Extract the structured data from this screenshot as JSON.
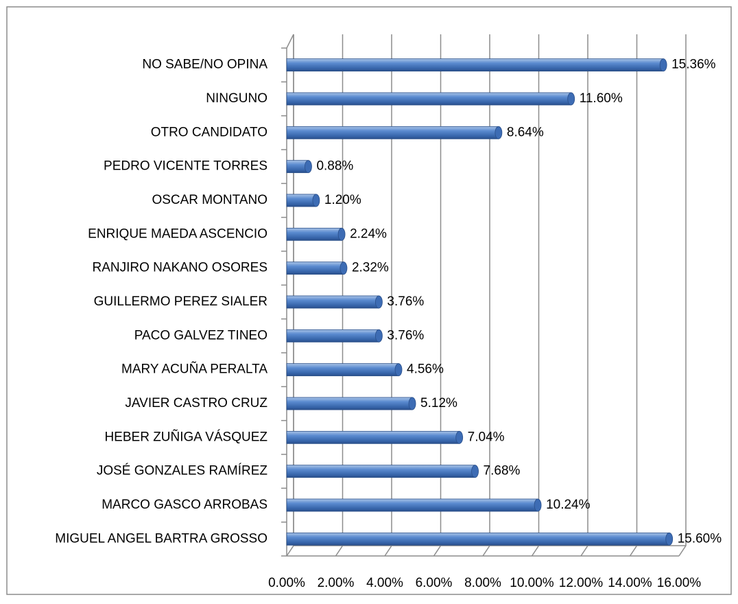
{
  "chart_data": {
    "type": "bar",
    "orientation": "horizontal",
    "color": "#4f81bd",
    "categories": [
      "NO SABE/NO OPINA",
      "NINGUNO",
      "OTRO CANDIDATO",
      "PEDRO VICENTE TORRES",
      "OSCAR MONTANO",
      "ENRIQUE MAEDA ASCENCIO",
      "RANJIRO NAKANO OSORES",
      "GUILLERMO PEREZ SIALER",
      "PACO GALVEZ TINEO",
      "MARY ACUÑA PERALTA",
      "JAVIER CASTRO CRUZ",
      "HEBER ZUÑIGA VÁSQUEZ",
      "JOSÉ GONZALES RAMÍREZ",
      "MARCO GASCO ARROBAS",
      "MIGUEL ANGEL BARTRA GROSSO"
    ],
    "values": [
      15.36,
      11.6,
      8.64,
      0.88,
      1.2,
      2.24,
      2.32,
      3.76,
      3.76,
      4.56,
      5.12,
      7.04,
      7.68,
      10.24,
      15.6
    ],
    "value_labels": [
      "15.36%",
      "11.60%",
      "8.64%",
      "0.88%",
      "1.20%",
      "2.24%",
      "2.32%",
      "3.76%",
      "3.76%",
      "4.56%",
      "5.12%",
      "7.04%",
      "7.68%",
      "10.24%",
      "15.60%"
    ],
    "xlim": [
      0,
      16
    ],
    "xticks": [
      {
        "value": 0,
        "label": "0.00%"
      },
      {
        "value": 2,
        "label": "2.00%"
      },
      {
        "value": 4,
        "label": "4.00%"
      },
      {
        "value": 6,
        "label": "6.00%"
      },
      {
        "value": 8,
        "label": "8.00%"
      },
      {
        "value": 10,
        "label": "10.00%"
      },
      {
        "value": 12,
        "label": "12.00%"
      },
      {
        "value": 14,
        "label": "14.00%"
      },
      {
        "value": 16,
        "label": "16.00%"
      }
    ],
    "grid": true
  }
}
